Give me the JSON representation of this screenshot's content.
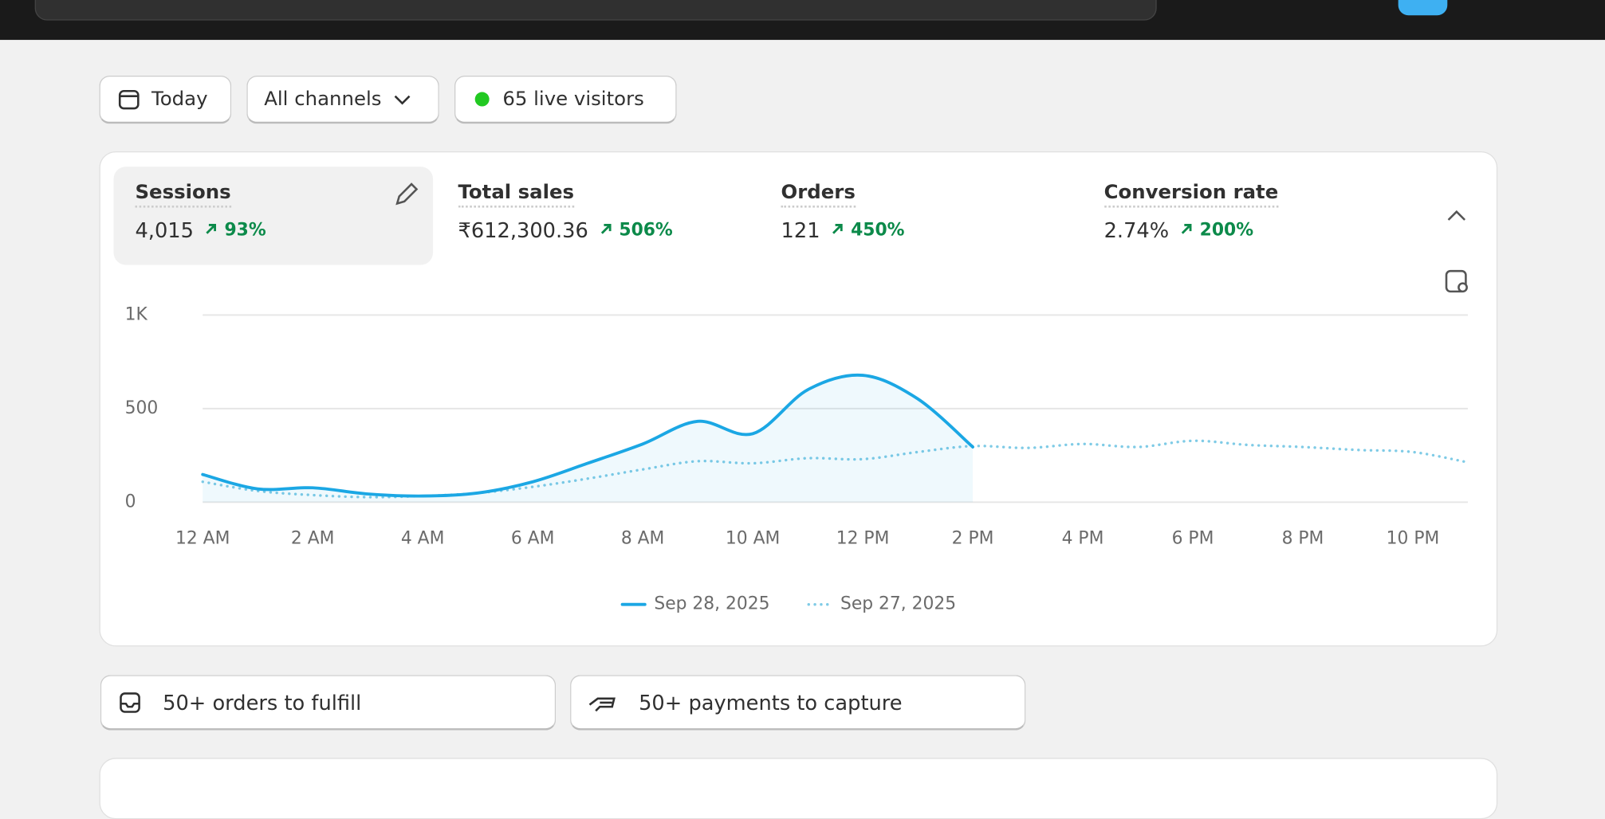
{
  "filters": [
    "Today",
    "All channels",
    "65 live visitors"
  ],
  "metrics": [
    {
      "label": "Sessions",
      "value": "4,015",
      "change": "93%"
    },
    {
      "label": "Total sales",
      "value": "₹612,300.36",
      "change": "506%"
    },
    {
      "label": "Orders",
      "value": "121",
      "change": "450%"
    },
    {
      "label": "Conversion rate",
      "value": "2.74%",
      "change": "200%"
    }
  ],
  "tasks": [
    "50+ orders to fulfill",
    "50+ payments to capture"
  ],
  "chart_data": {
    "type": "line",
    "categories": [
      "12 AM",
      null,
      "2 AM",
      null,
      "4 AM",
      null,
      "6 AM",
      null,
      "8 AM",
      null,
      "10 AM",
      null,
      "12 PM",
      null,
      "2 PM",
      null,
      "4 PM",
      null,
      "6 PM",
      null,
      "8 PM",
      null,
      "10 PM",
      null
    ],
    "series": [
      {
        "name": "Sep 28, 2025",
        "color": "#1ba7e4",
        "values": [
          148,
          71,
          77,
          44,
          33,
          49,
          109,
          208,
          311,
          432,
          366,
          601,
          678,
          552,
          295,
          null,
          null,
          null,
          null,
          null,
          null,
          null,
          null,
          null
        ]
      },
      {
        "name": "Sep 27, 2025",
        "color": "#7fcbe6",
        "values": [
          109,
          60,
          38,
          27,
          33,
          49,
          82,
          126,
          175,
          219,
          208,
          235,
          230,
          268,
          300,
          290,
          311,
          295,
          328,
          306,
          295,
          279,
          268,
          213
        ]
      }
    ],
    "ylim": [
      0,
      1000
    ],
    "yticks": [
      0,
      500,
      {
        "value": 1000,
        "label": "1K"
      }
    ],
    "grid": true
  }
}
